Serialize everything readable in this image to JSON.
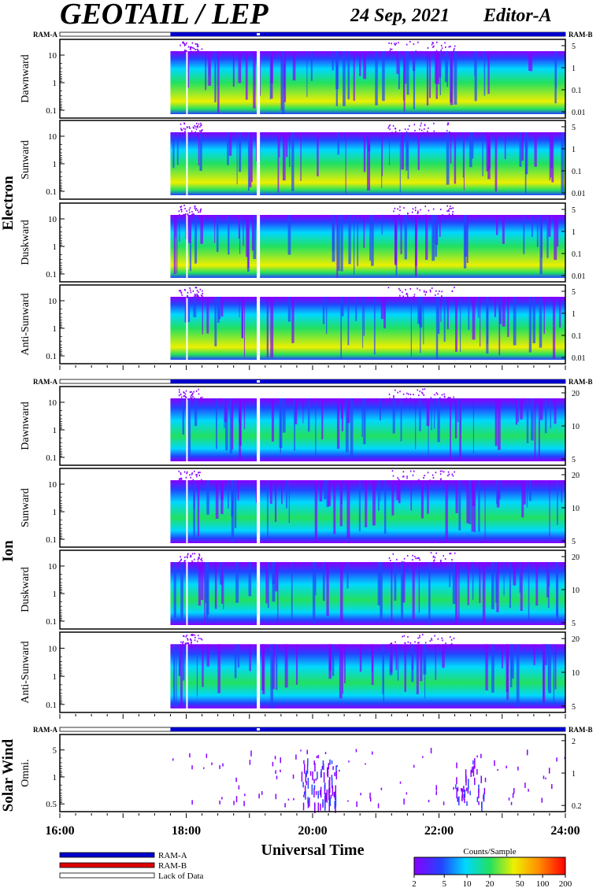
{
  "header": {
    "title": "GEOTAIL / LEP",
    "date": "24 Sep, 2021",
    "editor": "Editor-A"
  },
  "chart_data": {
    "type": "heatmap",
    "x_ticks": [
      "16:00",
      "18:00",
      "20:00",
      "22:00",
      "24:00"
    ],
    "xlabel": "Universal Time",
    "ram_labels": {
      "left": "RAM-A",
      "right": "RAM-B"
    },
    "groups": [
      {
        "name": "Electron",
        "right_axis": [
          "5",
          "1",
          "0.1",
          "0.01"
        ],
        "panels": [
          {
            "name": "Dawnward",
            "y_ticks": [
              "10",
              "1",
              "0.1"
            ]
          },
          {
            "name": "Sunward",
            "y_ticks": [
              "10",
              "1",
              "0.1"
            ]
          },
          {
            "name": "Duskward",
            "y_ticks": [
              "10",
              "1",
              "0.1"
            ]
          },
          {
            "name": "Anti-Sunward",
            "y_ticks": [
              "10",
              "1",
              "0.1"
            ]
          }
        ]
      },
      {
        "name": "Ion",
        "right_axis": [
          "20",
          "10",
          "5"
        ],
        "panels": [
          {
            "name": "Dawnward",
            "y_ticks": [
              "10",
              "1",
              "0.1"
            ]
          },
          {
            "name": "Sunward",
            "y_ticks": [
              "10",
              "1",
              "0.1"
            ]
          },
          {
            "name": "Duskward",
            "y_ticks": [
              "10",
              "1",
              "0.1"
            ]
          },
          {
            "name": "Anti-Sunward",
            "y_ticks": [
              "10",
              "1",
              "0.1"
            ]
          }
        ]
      },
      {
        "name": "Solar Wind",
        "right_axis": [
          "2",
          "1",
          "0.2"
        ],
        "panels": [
          {
            "name": "Omni.",
            "y_ticks": [
              "5",
              "1",
              "0.5"
            ]
          }
        ]
      }
    ],
    "data_start_ut": "17:45",
    "data_gap_ut": "19:07",
    "legend": [
      {
        "label": "RAM-A",
        "color": "#0000cc"
      },
      {
        "label": "RAM-B",
        "color": "#dd0000"
      },
      {
        "label": "Lack of Data",
        "color": "#ffffff"
      }
    ],
    "colorbar": {
      "title": "Counts/Sample",
      "ticks": [
        "2",
        "5",
        "10",
        "20",
        "50",
        "100",
        "200"
      ]
    }
  }
}
